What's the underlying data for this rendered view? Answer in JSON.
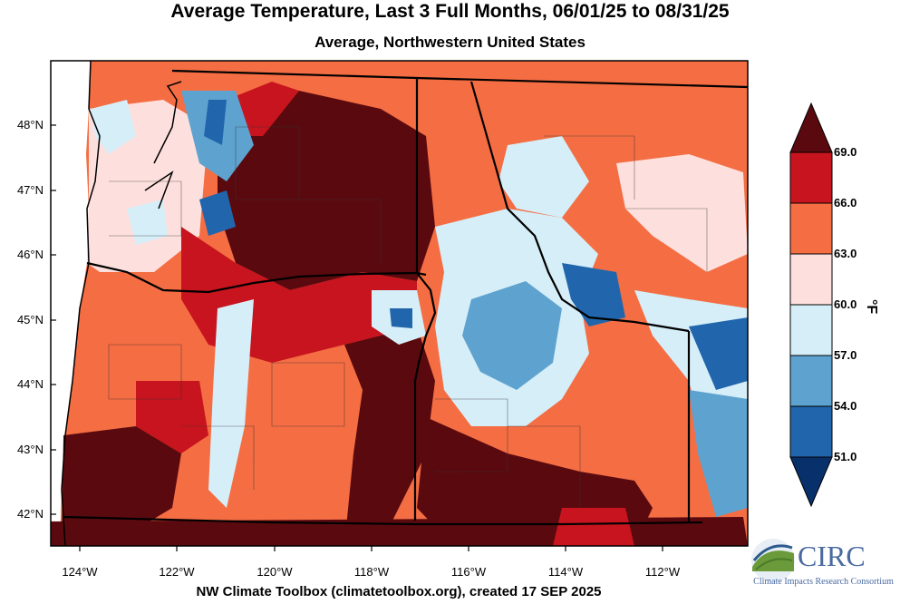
{
  "title": "Average Temperature, Last 3 Full Months, 06/01/25 to 08/31/25",
  "subtitle": "Average, Northwestern United States",
  "credit": "NW Climate Toolbox (climatetoolbox.org), created 17 SEP 2025",
  "map": {
    "lat_labels": [
      "48°N",
      "47°N",
      "46°N",
      "45°N",
      "44°N",
      "43°N",
      "42°N"
    ],
    "lon_labels": [
      "124°W",
      "122°W",
      "120°W",
      "118°W",
      "116°W",
      "114°W",
      "112°W"
    ],
    "colorbar": {
      "unit": "°F",
      "labels": [
        "69.0",
        "66.0",
        "63.0",
        "60.0",
        "57.0",
        "54.0",
        "51.0"
      ],
      "colors": {
        "over": "#5a0a0f",
        "c66_69": "#c8141e",
        "c63_66": "#f46d43",
        "c60_63": "#fde0dd",
        "c57_60": "#d6eef8",
        "c54_57": "#5ea3cf",
        "c51_54": "#2166ac",
        "under": "#08306b"
      }
    }
  },
  "logo": {
    "name": "CIRC",
    "subtitle": "Climate Impacts Research Consortium"
  }
}
